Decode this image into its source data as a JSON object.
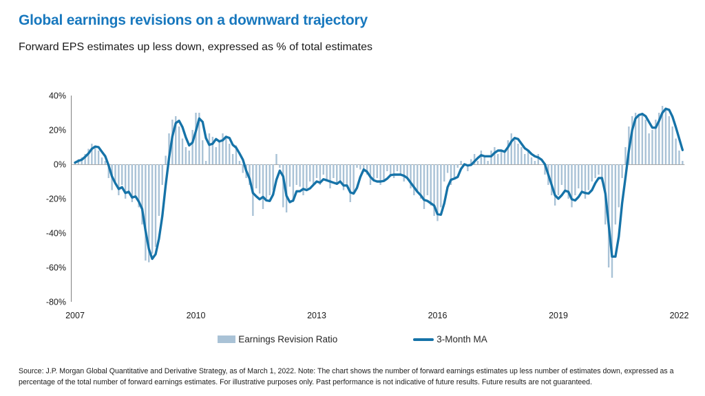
{
  "header": {
    "title": "Global earnings revisions on a downward trajectory",
    "subtitle": "Forward EPS estimates up less down, expressed as % of total estimates",
    "title_color": "#1878BE"
  },
  "footer": {
    "source_note": "Source: J.P. Morgan Global Quantitative and Derivative Strategy, as of March 1, 2022. Note: The chart shows the number of forward earnings estimates up less number of estimates down, expressed as a percentage of the total number of forward earnings estimates. For illustrative purposes only. Past performance is not indicative of future results. Future results are not guaranteed."
  },
  "chart_data": {
    "type": "bar",
    "title": "Global earnings revisions on a downward trajectory",
    "subtitle": "Forward EPS estimates up less down, expressed as % of total estimates",
    "xlabel": "",
    "ylabel": "",
    "ylim": [
      -80,
      40
    ],
    "y_ticks": [
      40,
      20,
      0,
      -20,
      -40,
      -60,
      -80
    ],
    "y_tick_suffix": "%",
    "x_tick_years": [
      2007,
      2010,
      2013,
      2016,
      2019,
      2022
    ],
    "x_start": "2007-01",
    "frequency": "monthly",
    "grid": "zero-line-only",
    "legend_position": "bottom",
    "axis_color": "#7F7F7F",
    "zero_line_color": "#A6A6A6",
    "tick_text_color": "#1a1a1a",
    "series": [
      {
        "name": "Earnings Revision Ratio",
        "type": "bar",
        "color": "#A9C2D6",
        "values": [
          1,
          3,
          4,
          6,
          9,
          12,
          10,
          8,
          4,
          2,
          -8,
          -15,
          -10,
          -18,
          -12,
          -20,
          -16,
          -22,
          -18,
          -25,
          -35,
          -56,
          -57,
          -52,
          -48,
          -30,
          -12,
          5,
          18,
          26,
          28,
          22,
          15,
          10,
          8,
          20,
          30,
          30,
          14,
          2,
          18,
          16,
          10,
          14,
          18,
          16,
          12,
          6,
          11,
          2,
          -5,
          -8,
          -12,
          -30,
          -14,
          -17,
          -26,
          -20,
          -18,
          -15,
          6,
          -2,
          -25,
          -28,
          -13,
          -22,
          -12,
          -13,
          -18,
          -14,
          -10,
          -12,
          -8,
          -12,
          -6,
          -10,
          -14,
          -8,
          -12,
          -10,
          -15,
          -12,
          -22,
          -17,
          -2,
          -3,
          -4,
          -6,
          -12,
          -10,
          -8,
          -12,
          -9,
          -4,
          -6,
          -8,
          -4,
          -6,
          -10,
          -8,
          -14,
          -18,
          -16,
          -20,
          -26,
          -18,
          -24,
          -30,
          -33,
          -25,
          -10,
          -5,
          -12,
          -8,
          -2,
          2,
          0,
          -4,
          3,
          6,
          2,
          8,
          4,
          2,
          8,
          10,
          6,
          8,
          8,
          14,
          18,
          14,
          12,
          10,
          6,
          8,
          4,
          2,
          6,
          0,
          -6,
          -12,
          -18,
          -24,
          -18,
          -12,
          -16,
          -20,
          -25,
          -18,
          -14,
          -16,
          -20,
          -15,
          -10,
          -8,
          -6,
          -10,
          -35,
          -60,
          -66,
          -35,
          -25,
          -8,
          10,
          22,
          28,
          30,
          28,
          30,
          26,
          18,
          20,
          26,
          30,
          34,
          33,
          28,
          22,
          15,
          8,
          2
        ]
      },
      {
        "name": "3-Month MA",
        "type": "line",
        "color": "#1673A8",
        "derived": "3-month moving average of Earnings Revision Ratio"
      }
    ]
  }
}
